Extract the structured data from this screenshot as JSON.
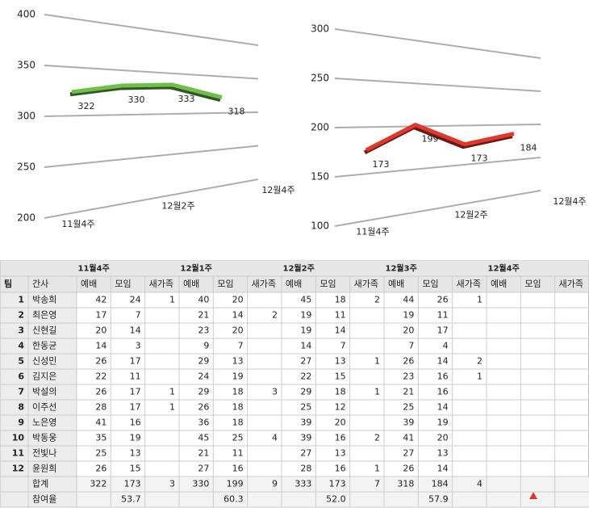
{
  "chart_data": [
    {
      "type": "line",
      "categories": [
        "11월4주",
        null,
        "12월2주",
        null,
        "12월4주"
      ],
      "values": [
        322,
        330,
        333,
        318,
        null
      ],
      "color": "#6fbf4a",
      "ylim": [
        200,
        400
      ],
      "yticks": [
        200,
        250,
        300,
        350,
        400
      ],
      "grid": true
    },
    {
      "type": "line",
      "categories": [
        "11월4주",
        null,
        "12월2주",
        null,
        "12월4주"
      ],
      "values": [
        173,
        199,
        173,
        184,
        null
      ],
      "color": "#e0392b",
      "ylim": [
        100,
        300
      ],
      "yticks": [
        100,
        150,
        200,
        250,
        300
      ],
      "grid": true
    }
  ],
  "table": {
    "groups": [
      "11월4주",
      "12월1주",
      "12월2주",
      "12월3주",
      "12월4주"
    ],
    "columns": [
      "팀",
      "간사",
      "예배",
      "모임",
      "새가족",
      "예배",
      "모임",
      "새가족",
      "예배",
      "모임",
      "새가족",
      "예배",
      "모임",
      "새가족",
      "예배",
      "모임",
      "새가족"
    ],
    "rows": [
      [
        1,
        "박송희",
        42,
        24,
        1,
        40,
        20,
        null,
        45,
        18,
        2,
        44,
        26,
        1,
        null,
        null,
        null
      ],
      [
        2,
        "최은영",
        17,
        7,
        null,
        21,
        14,
        2,
        19,
        11,
        null,
        19,
        11,
        null,
        null,
        null,
        null
      ],
      [
        3,
        "신현길",
        20,
        14,
        null,
        23,
        20,
        null,
        19,
        14,
        null,
        20,
        17,
        null,
        null,
        null,
        null
      ],
      [
        4,
        "한동균",
        14,
        3,
        null,
        9,
        7,
        null,
        14,
        7,
        null,
        7,
        4,
        null,
        null,
        null,
        null
      ],
      [
        5,
        "신성민",
        26,
        17,
        null,
        29,
        13,
        null,
        27,
        13,
        1,
        26,
        14,
        2,
        null,
        null,
        null
      ],
      [
        6,
        "김지은",
        22,
        11,
        null,
        24,
        19,
        null,
        22,
        15,
        null,
        23,
        16,
        1,
        null,
        null,
        null
      ],
      [
        7,
        "박설의",
        26,
        17,
        1,
        29,
        18,
        3,
        29,
        18,
        1,
        21,
        16,
        null,
        null,
        null,
        null
      ],
      [
        8,
        "이주선",
        28,
        17,
        1,
        26,
        18,
        null,
        25,
        12,
        null,
        25,
        14,
        null,
        null,
        null,
        null
      ],
      [
        9,
        "노은영",
        41,
        16,
        null,
        36,
        18,
        null,
        39,
        20,
        null,
        39,
        19,
        null,
        null,
        null,
        null
      ],
      [
        10,
        "박동웅",
        35,
        19,
        null,
        45,
        25,
        4,
        39,
        16,
        2,
        41,
        20,
        null,
        null,
        null,
        null
      ],
      [
        11,
        "전빛나",
        25,
        13,
        null,
        21,
        11,
        null,
        27,
        13,
        null,
        27,
        13,
        null,
        null,
        null,
        null
      ],
      [
        12,
        "윤원희",
        26,
        15,
        null,
        27,
        16,
        null,
        28,
        16,
        1,
        26,
        14,
        null,
        null,
        null,
        null
      ],
      [
        null,
        "합계",
        322,
        173,
        3,
        330,
        199,
        9,
        333,
        173,
        7,
        318,
        184,
        4,
        null,
        null,
        null
      ],
      [
        null,
        "참여율",
        null,
        53.7,
        null,
        null,
        60.3,
        null,
        null,
        "52.0",
        null,
        null,
        57.9,
        null,
        null,
        null,
        null
      ]
    ]
  }
}
